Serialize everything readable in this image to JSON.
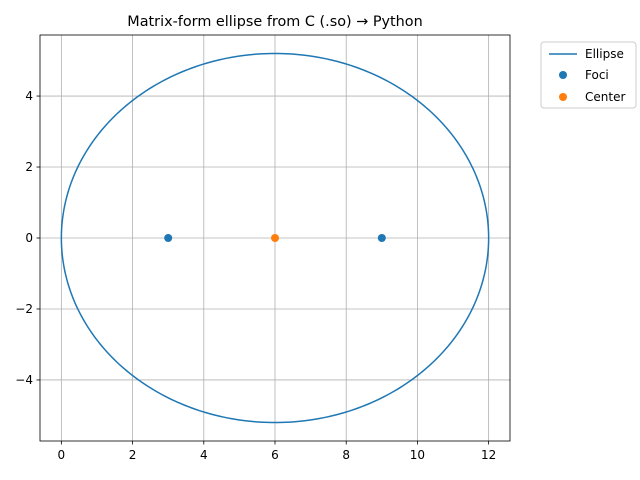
{
  "chart_data": {
    "type": "scatter",
    "title": "Matrix-form ellipse from C (.so) → Python",
    "xlabel": "",
    "ylabel": "",
    "xlim": [
      -0.6,
      12.6
    ],
    "ylim": [
      -5.72,
      5.72
    ],
    "xticks": [
      0,
      2,
      4,
      6,
      8,
      10,
      12
    ],
    "yticks": [
      -4,
      -2,
      0,
      2,
      4
    ],
    "xtick_labels": [
      "0",
      "2",
      "4",
      "6",
      "8",
      "10",
      "12"
    ],
    "ytick_labels": [
      "−4",
      "−2",
      "0",
      "2",
      "4"
    ],
    "grid": true,
    "legend_position": "outside-top-right",
    "series": [
      {
        "name": "Ellipse",
        "kind": "line",
        "color": "#1f77b4",
        "center": [
          6,
          0
        ],
        "semi_axis_x": 6,
        "semi_axis_y": 5.2
      },
      {
        "name": "Foci",
        "kind": "scatter",
        "color": "#1f77b4",
        "points": [
          [
            3,
            0
          ],
          [
            9,
            0
          ]
        ]
      },
      {
        "name": "Center",
        "kind": "scatter",
        "color": "#ff7f0e",
        "points": [
          [
            6,
            0
          ]
        ]
      }
    ]
  }
}
